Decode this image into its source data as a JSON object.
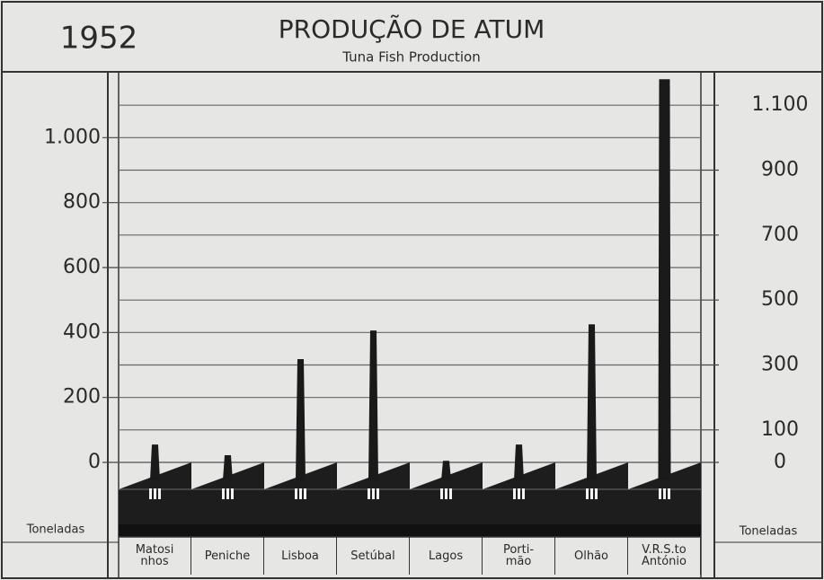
{
  "chart_data": {
    "type": "bar",
    "year": "1952",
    "title": "PRODUÇÃO DE ATUM",
    "subtitle": "Tuna Fish Production",
    "ylabel": "Toneladas",
    "y2label": "Toneladas",
    "categories": [
      "Matosi\nnhos",
      "Peniche",
      "Lisboa",
      "Setúbal",
      "Lagos",
      "Porti-\nmão",
      "Olhão",
      "V.R.S.to\nAntónio"
    ],
    "values": [
      55,
      22,
      318,
      406,
      5,
      55,
      425,
      1180
    ],
    "color": "#1a1a1a",
    "ylim": [
      0,
      1200
    ],
    "yticks": [
      0,
      200,
      400,
      600,
      800,
      {
        "value": 1000,
        "label": "1.000"
      }
    ],
    "y2lim": [
      0,
      1200
    ],
    "y2ticks": [
      0,
      100,
      300,
      500,
      700,
      900,
      {
        "value": 1100,
        "label": "1.100"
      }
    ],
    "grid": true
  }
}
